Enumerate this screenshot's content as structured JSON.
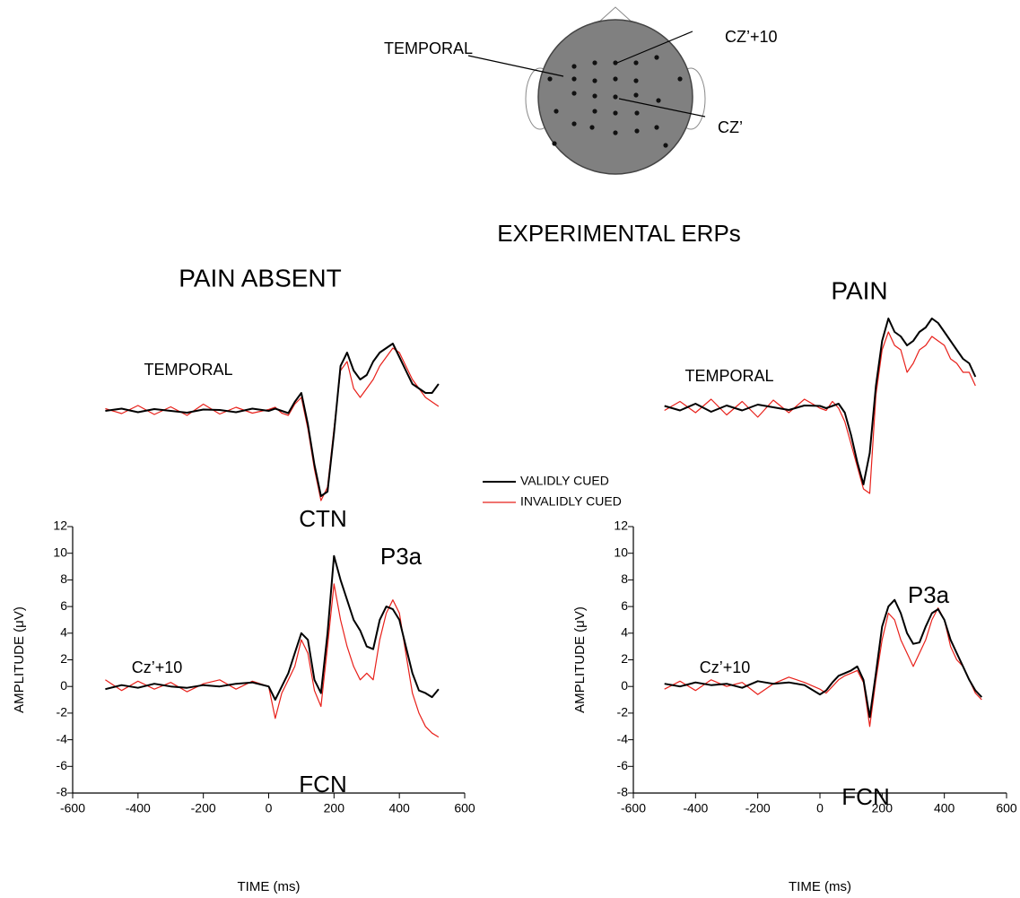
{
  "title": "EXPERIMENTAL ERPs",
  "head_diagram": {
    "labels": [
      "TEMPORAL",
      "CZ’+10",
      "CZ’"
    ]
  },
  "chart_data": [
    {
      "type": "line",
      "title": "PAIN ABSENT",
      "annotations": [
        "TEMPORAL",
        "CTN"
      ],
      "x": [
        -500,
        -450,
        -400,
        -350,
        -300,
        -250,
        -200,
        -150,
        -100,
        -50,
        0,
        20,
        40,
        60,
        80,
        100,
        120,
        140,
        160,
        180,
        200,
        220,
        240,
        260,
        280,
        300,
        320,
        340,
        360,
        380,
        400,
        420,
        440,
        460,
        480,
        500,
        520
      ],
      "xlim": [
        -600,
        600
      ],
      "ylim": [
        -25,
        25
      ],
      "series": [
        {
          "name": "VALIDLY CUED",
          "color": "#000000",
          "values": [
            0,
            0.5,
            -0.3,
            0.4,
            0,
            -0.4,
            0.3,
            0.2,
            -0.3,
            0.5,
            0,
            0.5,
            0,
            -0.5,
            2,
            4,
            -3,
            -12,
            -19,
            -18,
            -5,
            10,
            13,
            9,
            7,
            8,
            11,
            13,
            14,
            15,
            12,
            9,
            6,
            5,
            4,
            4,
            6
          ]
        },
        {
          "name": "INVALIDLY CUED",
          "color": "#e8201a",
          "values": [
            0.5,
            -0.6,
            1.2,
            -0.8,
            0.9,
            -1,
            1.5,
            -0.7,
            0.8,
            -0.5,
            0.3,
            0.8,
            -0.5,
            -1,
            1.5,
            3,
            -4,
            -13,
            -20,
            -17,
            -4,
            9,
            11,
            5,
            3,
            5,
            7,
            10,
            12,
            14,
            13,
            10,
            7,
            5,
            3,
            2,
            1
          ]
        }
      ]
    },
    {
      "type": "line",
      "annotations": [
        "Cz’+10",
        "P3a",
        "FCN"
      ],
      "xlabel": "TIME (ms)",
      "ylabel": "AMPLITUDE (μV)",
      "x": [
        -500,
        -450,
        -400,
        -350,
        -300,
        -250,
        -200,
        -150,
        -100,
        -50,
        0,
        20,
        40,
        60,
        80,
        100,
        120,
        140,
        160,
        180,
        200,
        220,
        240,
        260,
        280,
        300,
        320,
        340,
        360,
        380,
        400,
        420,
        440,
        460,
        480,
        500,
        520
      ],
      "xlim": [
        -600,
        600
      ],
      "ylim": [
        -8,
        12
      ],
      "xticks": [
        -600,
        -400,
        -200,
        0,
        200,
        400,
        600
      ],
      "yticks": [
        -8,
        -6,
        -4,
        -2,
        0,
        2,
        4,
        6,
        8,
        10,
        12
      ],
      "series": [
        {
          "name": "VALIDLY CUED",
          "color": "#000000",
          "values": [
            -0.2,
            0.1,
            -0.1,
            0.2,
            0,
            -0.1,
            0.1,
            0,
            0.2,
            0.3,
            0,
            -1,
            0,
            1,
            2.5,
            4,
            3.5,
            0.5,
            -0.5,
            4,
            9.8,
            8,
            6.5,
            5,
            4.2,
            3,
            2.8,
            5,
            6,
            5.8,
            5,
            3,
            1,
            -0.3,
            -0.5,
            -0.8,
            -0.2
          ]
        },
        {
          "name": "INVALIDLY CUED",
          "color": "#e8201a",
          "values": [
            0.5,
            -0.3,
            0.4,
            -0.2,
            0.3,
            -0.4,
            0.2,
            0.5,
            -0.2,
            0.4,
            0,
            -2.4,
            -0.5,
            0.5,
            1.5,
            3.5,
            2.5,
            -0.3,
            -1.5,
            3,
            7.7,
            5,
            3,
            1.5,
            0.5,
            1,
            0.5,
            3.5,
            5.5,
            6.5,
            5.5,
            2.5,
            -0.5,
            -2,
            -3,
            -3.5,
            -3.8
          ]
        }
      ]
    },
    {
      "type": "line",
      "title": "PAIN",
      "annotations": [
        "TEMPORAL"
      ],
      "x": [
        -500,
        -450,
        -400,
        -350,
        -300,
        -250,
        -200,
        -150,
        -100,
        -50,
        0,
        20,
        40,
        60,
        80,
        100,
        120,
        140,
        160,
        180,
        200,
        220,
        240,
        260,
        280,
        300,
        320,
        340,
        360,
        380,
        400,
        420,
        440,
        460,
        480,
        500
      ],
      "xlim": [
        -600,
        600
      ],
      "ylim": [
        -25,
        25
      ],
      "series": [
        {
          "name": "VALIDLY CUED",
          "color": "#000000",
          "values": [
            0.5,
            -0.5,
            1,
            -0.8,
            0.6,
            -0.5,
            0.8,
            0.2,
            -0.4,
            0.6,
            0.5,
            0,
            0.5,
            1,
            -1,
            -6,
            -12,
            -17,
            -10,
            5,
            15,
            20,
            17,
            16,
            14,
            15,
            17,
            18,
            20,
            19,
            17,
            15,
            13,
            11,
            10,
            7
          ]
        },
        {
          "name": "INVALIDLY CUED",
          "color": "#e8201a",
          "values": [
            -0.5,
            1.5,
            -1,
            2,
            -1.5,
            1.5,
            -2,
            1.8,
            -1,
            2,
            0,
            -0.5,
            1.5,
            0,
            -3,
            -8,
            -13,
            -18,
            -19,
            3,
            13,
            17,
            14,
            13,
            8,
            10,
            13,
            14,
            16,
            15,
            14,
            11,
            10,
            8,
            8,
            5
          ]
        }
      ]
    },
    {
      "type": "line",
      "annotations": [
        "Cz’+10",
        "P3a",
        "FCN"
      ],
      "xlabel": "TIME (ms)",
      "ylabel": "AMPLITUDE (μV)",
      "x": [
        -500,
        -450,
        -400,
        -350,
        -300,
        -250,
        -200,
        -150,
        -100,
        -50,
        0,
        20,
        40,
        60,
        80,
        100,
        120,
        140,
        160,
        180,
        200,
        220,
        240,
        260,
        280,
        300,
        320,
        340,
        360,
        380,
        400,
        420,
        440,
        460,
        480,
        500,
        520
      ],
      "xlim": [
        -600,
        600
      ],
      "ylim": [
        -8,
        12
      ],
      "xticks": [
        -600,
        -400,
        -200,
        0,
        200,
        400,
        600
      ],
      "yticks": [
        -8,
        -6,
        -4,
        -2,
        0,
        2,
        4,
        6,
        8,
        10,
        12
      ],
      "series": [
        {
          "name": "VALIDLY CUED",
          "color": "#000000",
          "values": [
            0.2,
            0,
            0.3,
            0.1,
            0.2,
            -0.1,
            0.4,
            0.2,
            0.3,
            0.1,
            -0.6,
            -0.3,
            0.3,
            0.8,
            1,
            1.2,
            1.5,
            0.5,
            -2.3,
            1,
            4.5,
            6,
            6.5,
            5.5,
            4,
            3.2,
            3.3,
            4.5,
            5.5,
            5.8,
            5,
            3.5,
            2.5,
            1.5,
            0.5,
            -0.3,
            -0.8
          ]
        },
        {
          "name": "INVALIDLY CUED",
          "color": "#e8201a",
          "values": [
            -0.2,
            0.4,
            -0.3,
            0.5,
            0,
            0.3,
            -0.6,
            0.2,
            0.7,
            0.3,
            -0.2,
            -0.5,
            0,
            0.5,
            0.8,
            1,
            1.2,
            0.3,
            -3,
            0.5,
            3.5,
            5.5,
            5,
            3.5,
            2.5,
            1.5,
            2.5,
            3.5,
            5,
            5.9,
            5,
            3,
            2,
            1.5,
            0.5,
            -0.5,
            -1
          ]
        }
      ]
    }
  ]
}
